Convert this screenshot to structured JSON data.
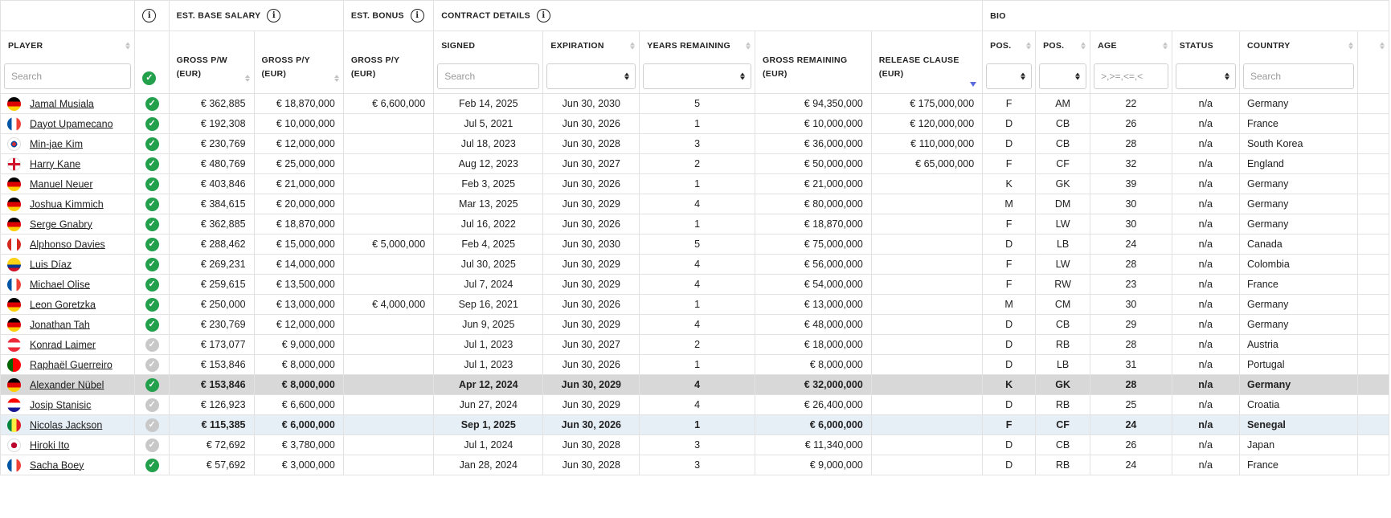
{
  "groups": {
    "base_salary": "EST. BASE SALARY",
    "bonus": "EST. BONUS",
    "contract": "CONTRACT DETAILS",
    "bio": "BIO"
  },
  "headers": {
    "player": "PLAYER",
    "gross_pw": "GROSS P/W\n(EUR)",
    "gross_py": "GROSS P/Y\n(EUR)",
    "bonus_py": "GROSS P/Y\n(EUR)",
    "signed": "SIGNED",
    "expiration": "EXPIRATION",
    "years_remaining": "YEARS REMAINING",
    "gross_remaining": "GROSS REMAINING\n(EUR)",
    "release_clause": "RELEASE CLAUSE\n(EUR)",
    "pos1": "POS.",
    "pos2": "POS.",
    "age": "AGE",
    "status": "STATUS",
    "country": "COUNTRY"
  },
  "filters": {
    "player_placeholder": "Search",
    "signed_placeholder": "Search",
    "age_placeholder": ">,>=,<=,<",
    "country_placeholder": "Search"
  },
  "colors": {
    "check_active": "#22a04b",
    "check_inactive": "#c8c8c8",
    "sort_active": "#5b6bdc"
  },
  "rows": [
    {
      "name": "Jamal Musiala",
      "flag": "germany",
      "active": true,
      "pw": "€ 362,885",
      "py": "€ 18,870,000",
      "bonus": "€ 6,600,000",
      "signed": "Feb 14, 2025",
      "exp": "Jun 30, 2030",
      "yrs": "5",
      "rem": "€ 94,350,000",
      "release": "€ 175,000,000",
      "pos1": "F",
      "pos2": "AM",
      "age": "22",
      "status": "n/a",
      "country": "Germany"
    },
    {
      "name": "Dayot Upamecano",
      "flag": "france",
      "active": true,
      "pw": "€ 192,308",
      "py": "€ 10,000,000",
      "bonus": "",
      "signed": "Jul 5, 2021",
      "exp": "Jun 30, 2026",
      "yrs": "1",
      "rem": "€ 10,000,000",
      "release": "€ 120,000,000",
      "pos1": "D",
      "pos2": "CB",
      "age": "26",
      "status": "n/a",
      "country": "France"
    },
    {
      "name": "Min-jae Kim",
      "flag": "korea",
      "active": true,
      "pw": "€ 230,769",
      "py": "€ 12,000,000",
      "bonus": "",
      "signed": "Jul 18, 2023",
      "exp": "Jun 30, 2028",
      "yrs": "3",
      "rem": "€ 36,000,000",
      "release": "€ 110,000,000",
      "pos1": "D",
      "pos2": "CB",
      "age": "28",
      "status": "n/a",
      "country": "South Korea"
    },
    {
      "name": "Harry Kane",
      "flag": "england",
      "active": true,
      "pw": "€ 480,769",
      "py": "€ 25,000,000",
      "bonus": "",
      "signed": "Aug 12, 2023",
      "exp": "Jun 30, 2027",
      "yrs": "2",
      "rem": "€ 50,000,000",
      "release": "€ 65,000,000",
      "pos1": "F",
      "pos2": "CF",
      "age": "32",
      "status": "n/a",
      "country": "England"
    },
    {
      "name": "Manuel Neuer",
      "flag": "germany",
      "active": true,
      "pw": "€ 403,846",
      "py": "€ 21,000,000",
      "bonus": "",
      "signed": "Feb 3, 2025",
      "exp": "Jun 30, 2026",
      "yrs": "1",
      "rem": "€ 21,000,000",
      "release": "",
      "pos1": "K",
      "pos2": "GK",
      "age": "39",
      "status": "n/a",
      "country": "Germany"
    },
    {
      "name": "Joshua Kimmich",
      "flag": "germany",
      "active": true,
      "pw": "€ 384,615",
      "py": "€ 20,000,000",
      "bonus": "",
      "signed": "Mar 13, 2025",
      "exp": "Jun 30, 2029",
      "yrs": "4",
      "rem": "€ 80,000,000",
      "release": "",
      "pos1": "M",
      "pos2": "DM",
      "age": "30",
      "status": "n/a",
      "country": "Germany"
    },
    {
      "name": "Serge Gnabry",
      "flag": "germany",
      "active": true,
      "pw": "€ 362,885",
      "py": "€ 18,870,000",
      "bonus": "",
      "signed": "Jul 16, 2022",
      "exp": "Jun 30, 2026",
      "yrs": "1",
      "rem": "€ 18,870,000",
      "release": "",
      "pos1": "F",
      "pos2": "LW",
      "age": "30",
      "status": "n/a",
      "country": "Germany"
    },
    {
      "name": "Alphonso Davies",
      "flag": "canada",
      "active": true,
      "pw": "€ 288,462",
      "py": "€ 15,000,000",
      "bonus": "€ 5,000,000",
      "signed": "Feb 4, 2025",
      "exp": "Jun 30, 2030",
      "yrs": "5",
      "rem": "€ 75,000,000",
      "release": "",
      "pos1": "D",
      "pos2": "LB",
      "age": "24",
      "status": "n/a",
      "country": "Canada"
    },
    {
      "name": "Luis Díaz",
      "flag": "colombia",
      "active": true,
      "pw": "€ 269,231",
      "py": "€ 14,000,000",
      "bonus": "",
      "signed": "Jul 30, 2025",
      "exp": "Jun 30, 2029",
      "yrs": "4",
      "rem": "€ 56,000,000",
      "release": "",
      "pos1": "F",
      "pos2": "LW",
      "age": "28",
      "status": "n/a",
      "country": "Colombia"
    },
    {
      "name": "Michael Olise",
      "flag": "france",
      "active": true,
      "pw": "€ 259,615",
      "py": "€ 13,500,000",
      "bonus": "",
      "signed": "Jul 7, 2024",
      "exp": "Jun 30, 2029",
      "yrs": "4",
      "rem": "€ 54,000,000",
      "release": "",
      "pos1": "F",
      "pos2": "RW",
      "age": "23",
      "status": "n/a",
      "country": "France"
    },
    {
      "name": "Leon Goretzka",
      "flag": "germany",
      "active": true,
      "pw": "€ 250,000",
      "py": "€ 13,000,000",
      "bonus": "€ 4,000,000",
      "signed": "Sep 16, 2021",
      "exp": "Jun 30, 2026",
      "yrs": "1",
      "rem": "€ 13,000,000",
      "release": "",
      "pos1": "M",
      "pos2": "CM",
      "age": "30",
      "status": "n/a",
      "country": "Germany"
    },
    {
      "name": "Jonathan Tah",
      "flag": "germany",
      "active": true,
      "pw": "€ 230,769",
      "py": "€ 12,000,000",
      "bonus": "",
      "signed": "Jun 9, 2025",
      "exp": "Jun 30, 2029",
      "yrs": "4",
      "rem": "€ 48,000,000",
      "release": "",
      "pos1": "D",
      "pos2": "CB",
      "age": "29",
      "status": "n/a",
      "country": "Germany"
    },
    {
      "name": "Konrad Laimer",
      "flag": "austria",
      "active": false,
      "pw": "€ 173,077",
      "py": "€ 9,000,000",
      "bonus": "",
      "signed": "Jul 1, 2023",
      "exp": "Jun 30, 2027",
      "yrs": "2",
      "rem": "€ 18,000,000",
      "release": "",
      "pos1": "D",
      "pos2": "RB",
      "age": "28",
      "status": "n/a",
      "country": "Austria"
    },
    {
      "name": "Raphaël Guerreiro",
      "flag": "portugal",
      "active": false,
      "pw": "€ 153,846",
      "py": "€ 8,000,000",
      "bonus": "",
      "signed": "Jul 1, 2023",
      "exp": "Jun 30, 2026",
      "yrs": "1",
      "rem": "€ 8,000,000",
      "release": "",
      "pos1": "D",
      "pos2": "LB",
      "age": "31",
      "status": "n/a",
      "country": "Portugal"
    },
    {
      "name": "Alexander Nübel",
      "flag": "germany",
      "active": true,
      "pw": "€ 153,846",
      "py": "€ 8,000,000",
      "bonus": "",
      "signed": "Apr 12, 2024",
      "exp": "Jun 30, 2029",
      "yrs": "4",
      "rem": "€ 32,000,000",
      "release": "",
      "pos1": "K",
      "pos2": "GK",
      "age": "28",
      "status": "n/a",
      "country": "Germany",
      "rowstyle": "sel"
    },
    {
      "name": "Josip Stanisic",
      "flag": "croatia",
      "active": false,
      "pw": "€ 126,923",
      "py": "€ 6,600,000",
      "bonus": "",
      "signed": "Jun 27, 2024",
      "exp": "Jun 30, 2029",
      "yrs": "4",
      "rem": "€ 26,400,000",
      "release": "",
      "pos1": "D",
      "pos2": "RB",
      "age": "25",
      "status": "n/a",
      "country": "Croatia"
    },
    {
      "name": "Nicolas Jackson",
      "flag": "senegal",
      "active": false,
      "pw": "€ 115,385",
      "py": "€ 6,000,000",
      "bonus": "",
      "signed": "Sep 1, 2025",
      "exp": "Jun 30, 2026",
      "yrs": "1",
      "rem": "€ 6,000,000",
      "release": "",
      "pos1": "F",
      "pos2": "CF",
      "age": "24",
      "status": "n/a",
      "country": "Senegal",
      "rowstyle": "hl"
    },
    {
      "name": "Hiroki Ito",
      "flag": "japan",
      "active": false,
      "pw": "€ 72,692",
      "py": "€ 3,780,000",
      "bonus": "",
      "signed": "Jul 1, 2024",
      "exp": "Jun 30, 2028",
      "yrs": "3",
      "rem": "€ 11,340,000",
      "release": "",
      "pos1": "D",
      "pos2": "CB",
      "age": "26",
      "status": "n/a",
      "country": "Japan"
    },
    {
      "name": "Sacha Boey",
      "flag": "france",
      "active": true,
      "pw": "€ 57,692",
      "py": "€ 3,000,000",
      "bonus": "",
      "signed": "Jan 28, 2024",
      "exp": "Jun 30, 2028",
      "yrs": "3",
      "rem": "€ 9,000,000",
      "release": "",
      "pos1": "D",
      "pos2": "RB",
      "age": "24",
      "status": "n/a",
      "country": "France"
    }
  ]
}
